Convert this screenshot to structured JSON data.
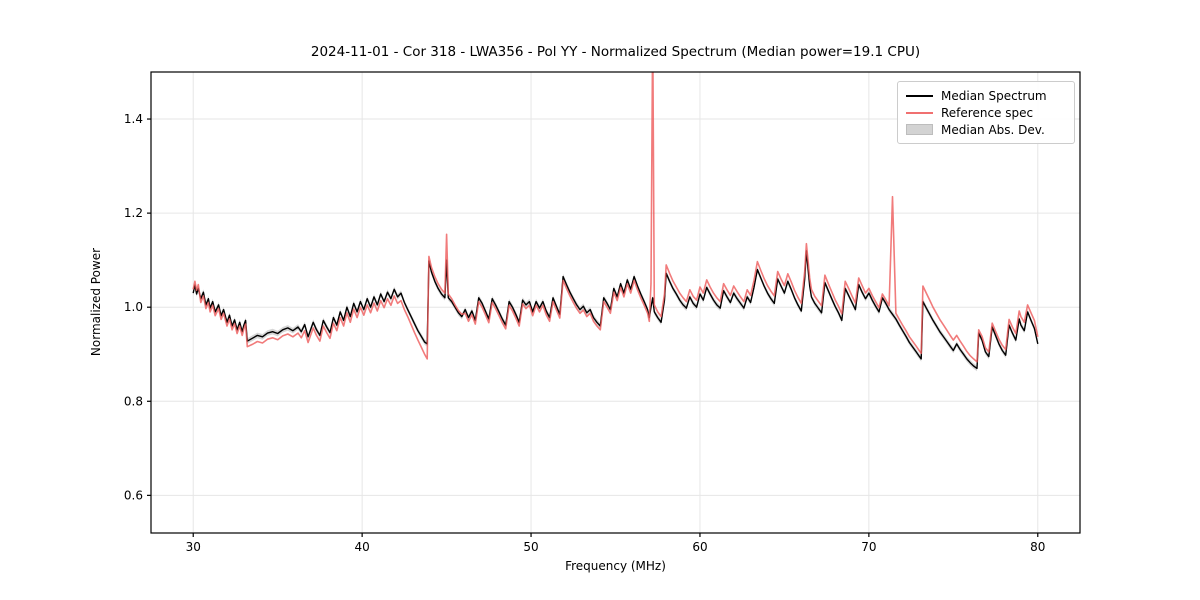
{
  "chart": {
    "title": "2024-11-01 - Cor 318 - LWA356 - Pol YY - Normalized Spectrum (Median power=19.1 CPU)",
    "xlabel": "Frequency (MHz)",
    "ylabel": "Normalized Power"
  },
  "legend": {
    "items": [
      {
        "label": "Median Spectrum",
        "type": "line",
        "color": "#000000"
      },
      {
        "label": "Reference spec",
        "type": "line",
        "color": "#f07070"
      },
      {
        "label": "Median Abs. Dev.",
        "type": "patch",
        "color": "#d3d3d3"
      }
    ]
  },
  "chart_data": {
    "type": "line",
    "title": "2024-11-01 - Cor 318 - LWA356 - Pol YY - Normalized Spectrum (Median power=19.1 CPU)",
    "xlabel": "Frequency (MHz)",
    "ylabel": "Normalized Power",
    "xlim": [
      27.5,
      82.5
    ],
    "ylim": [
      0.52,
      1.5
    ],
    "xticks": [
      30,
      40,
      50,
      60,
      70,
      80
    ],
    "yticks": [
      0.6,
      0.8,
      1.0,
      1.2,
      1.4
    ],
    "grid": true,
    "legend_position": "upper right",
    "colors": {
      "median": "#000000",
      "reference": "#ee5a5a",
      "mad_band": "#d2d2d2"
    },
    "mad_halfwidth": 0.006,
    "x": [
      30.0,
      30.1,
      30.2,
      30.3,
      30.45,
      30.6,
      30.75,
      30.9,
      31.0,
      31.15,
      31.3,
      31.5,
      31.65,
      31.8,
      32.0,
      32.15,
      32.3,
      32.45,
      32.6,
      32.75,
      32.9,
      33.0,
      33.1,
      33.2,
      33.5,
      33.8,
      34.1,
      34.4,
      34.7,
      35.0,
      35.3,
      35.6,
      35.9,
      36.2,
      36.4,
      36.6,
      36.8,
      37.1,
      37.3,
      37.5,
      37.7,
      37.9,
      38.1,
      38.3,
      38.5,
      38.7,
      38.9,
      39.1,
      39.3,
      39.5,
      39.7,
      39.9,
      40.1,
      40.3,
      40.5,
      40.7,
      40.9,
      41.1,
      41.3,
      41.5,
      41.7,
      41.9,
      42.1,
      42.3,
      42.5,
      42.7,
      42.9,
      43.1,
      43.3,
      43.5,
      43.7,
      43.85,
      43.95,
      44.1,
      44.3,
      44.5,
      44.7,
      44.9,
      45.0,
      45.1,
      45.3,
      45.5,
      45.7,
      45.9,
      46.1,
      46.3,
      46.5,
      46.7,
      46.9,
      47.1,
      47.3,
      47.5,
      47.7,
      47.9,
      48.1,
      48.3,
      48.5,
      48.7,
      48.9,
      49.1,
      49.3,
      49.5,
      49.7,
      49.9,
      50.1,
      50.3,
      50.5,
      50.7,
      50.9,
      51.1,
      51.3,
      51.5,
      51.7,
      51.9,
      52.1,
      52.3,
      52.5,
      52.7,
      52.9,
      53.1,
      53.3,
      53.5,
      53.7,
      53.9,
      54.1,
      54.3,
      54.5,
      54.7,
      54.9,
      55.1,
      55.3,
      55.5,
      55.7,
      55.9,
      56.1,
      56.3,
      56.5,
      56.7,
      56.9,
      57.0,
      57.1,
      57.2,
      57.3,
      57.5,
      57.7,
      57.9,
      58.0,
      58.2,
      58.4,
      58.6,
      58.8,
      59.0,
      59.2,
      59.4,
      59.6,
      59.8,
      60.0,
      60.2,
      60.4,
      60.6,
      60.8,
      61.0,
      61.2,
      61.4,
      61.6,
      61.8,
      62.0,
      62.2,
      62.4,
      62.6,
      62.8,
      63.0,
      63.2,
      63.4,
      63.6,
      63.8,
      64.0,
      64.2,
      64.4,
      64.6,
      64.8,
      65.0,
      65.2,
      65.4,
      65.6,
      65.8,
      66.0,
      66.2,
      66.3,
      66.4,
      66.5,
      66.6,
      66.8,
      67.0,
      67.2,
      67.4,
      67.6,
      67.8,
      68.0,
      68.2,
      68.4,
      68.6,
      68.8,
      69.0,
      69.2,
      69.4,
      69.6,
      69.8,
      70.0,
      70.2,
      70.4,
      70.6,
      70.8,
      71.0,
      71.2,
      71.4,
      71.6,
      71.8,
      72.0,
      72.2,
      72.4,
      72.6,
      72.8,
      73.0,
      73.1,
      73.2,
      73.4,
      73.6,
      73.8,
      74.0,
      74.2,
      74.4,
      74.6,
      74.8,
      75.0,
      75.2,
      75.4,
      75.6,
      75.8,
      76.0,
      76.2,
      76.4,
      76.5,
      76.7,
      76.9,
      77.1,
      77.3,
      77.5,
      77.7,
      77.9,
      78.1,
      78.3,
      78.5,
      78.7,
      78.9,
      79.0,
      79.2,
      79.4,
      79.6,
      79.8,
      80.0
    ],
    "series": [
      {
        "name": "Median Spectrum",
        "values": [
          1.03,
          1.047,
          1.028,
          1.04,
          1.018,
          1.032,
          1.005,
          1.018,
          0.998,
          1.012,
          0.99,
          1.005,
          0.982,
          0.995,
          0.968,
          0.983,
          0.96,
          0.973,
          0.952,
          0.968,
          0.948,
          0.962,
          0.972,
          0.928,
          0.934,
          0.94,
          0.937,
          0.945,
          0.948,
          0.944,
          0.952,
          0.956,
          0.95,
          0.958,
          0.948,
          0.963,
          0.937,
          0.968,
          0.952,
          0.94,
          0.972,
          0.958,
          0.946,
          0.978,
          0.962,
          0.99,
          0.972,
          1.0,
          0.98,
          1.008,
          0.99,
          1.012,
          0.995,
          1.018,
          1.0,
          1.022,
          1.005,
          1.028,
          1.012,
          1.032,
          1.018,
          1.038,
          1.022,
          1.03,
          1.01,
          0.995,
          0.98,
          0.965,
          0.95,
          0.938,
          0.926,
          0.922,
          1.098,
          1.075,
          1.055,
          1.04,
          1.028,
          1.02,
          1.1,
          1.02,
          1.012,
          1.0,
          0.988,
          0.98,
          0.995,
          0.978,
          0.992,
          0.972,
          1.02,
          1.008,
          0.992,
          0.975,
          1.018,
          1.005,
          0.99,
          0.975,
          0.962,
          1.012,
          1.0,
          0.985,
          0.968,
          1.015,
          1.005,
          1.012,
          0.99,
          1.012,
          0.998,
          1.012,
          0.992,
          0.978,
          1.02,
          1.002,
          0.985,
          1.065,
          1.048,
          1.032,
          1.018,
          1.005,
          0.995,
          1.002,
          0.988,
          0.995,
          0.978,
          0.968,
          0.96,
          1.02,
          1.008,
          0.995,
          1.04,
          1.022,
          1.05,
          1.03,
          1.058,
          1.038,
          1.065,
          1.045,
          1.028,
          1.012,
          0.995,
          0.978,
          1.0,
          1.02,
          0.99,
          0.978,
          0.968,
          1.015,
          1.072,
          1.055,
          1.04,
          1.028,
          1.015,
          1.005,
          0.998,
          1.022,
          1.008,
          1.0,
          1.028,
          1.015,
          1.042,
          1.028,
          1.015,
          1.005,
          0.998,
          1.035,
          1.022,
          1.01,
          1.03,
          1.018,
          1.008,
          0.998,
          1.022,
          1.01,
          1.042,
          1.08,
          1.062,
          1.045,
          1.03,
          1.018,
          1.008,
          1.06,
          1.045,
          1.03,
          1.055,
          1.038,
          1.02,
          1.005,
          0.992,
          1.06,
          1.12,
          1.08,
          1.045,
          1.022,
          1.008,
          0.998,
          0.988,
          1.052,
          1.035,
          1.018,
          1.002,
          0.988,
          0.972,
          1.04,
          1.025,
          1.01,
          0.995,
          1.048,
          1.032,
          1.018,
          1.03,
          1.015,
          1.002,
          0.99,
          1.02,
          1.008,
          0.995,
          0.985,
          0.975,
          0.962,
          0.95,
          0.938,
          0.925,
          0.915,
          0.905,
          0.895,
          0.89,
          1.012,
          0.998,
          0.985,
          0.972,
          0.96,
          0.948,
          0.938,
          0.928,
          0.918,
          0.908,
          0.922,
          0.91,
          0.9,
          0.89,
          0.882,
          0.875,
          0.87,
          0.945,
          0.93,
          0.905,
          0.895,
          0.958,
          0.94,
          0.922,
          0.908,
          0.898,
          0.962,
          0.945,
          0.93,
          0.975,
          0.962,
          0.95,
          0.99,
          0.972,
          0.955,
          0.922
        ]
      },
      {
        "name": "Reference spec",
        "values": [
          1.038,
          1.055,
          1.036,
          1.048,
          1.01,
          1.024,
          0.997,
          1.01,
          0.99,
          1.004,
          0.982,
          0.997,
          0.974,
          0.987,
          0.96,
          0.975,
          0.952,
          0.965,
          0.944,
          0.96,
          0.94,
          0.954,
          0.964,
          0.916,
          0.921,
          0.927,
          0.924,
          0.932,
          0.935,
          0.931,
          0.939,
          0.943,
          0.937,
          0.945,
          0.935,
          0.95,
          0.925,
          0.956,
          0.94,
          0.928,
          0.96,
          0.946,
          0.934,
          0.966,
          0.95,
          0.978,
          0.96,
          0.988,
          0.968,
          0.996,
          0.978,
          1.0,
          0.983,
          1.005,
          0.988,
          1.009,
          0.992,
          1.014,
          0.999,
          1.018,
          1.004,
          1.024,
          1.008,
          1.014,
          0.995,
          0.98,
          0.963,
          0.946,
          0.93,
          0.915,
          0.9,
          0.89,
          1.108,
          1.085,
          1.065,
          1.05,
          1.038,
          1.03,
          1.155,
          1.028,
          1.018,
          1.005,
          0.993,
          0.985,
          0.987,
          0.97,
          0.984,
          0.964,
          1.012,
          1.0,
          0.984,
          0.967,
          1.01,
          0.997,
          0.982,
          0.967,
          0.954,
          1.004,
          0.992,
          0.977,
          0.96,
          1.007,
          0.997,
          1.004,
          0.982,
          1.004,
          0.99,
          1.004,
          0.984,
          0.97,
          1.012,
          0.994,
          0.977,
          1.057,
          1.04,
          1.024,
          1.01,
          0.997,
          0.987,
          0.994,
          0.98,
          0.987,
          0.97,
          0.96,
          0.952,
          1.012,
          1.0,
          0.987,
          1.032,
          1.014,
          1.042,
          1.022,
          1.05,
          1.03,
          1.057,
          1.037,
          1.02,
          1.004,
          0.987,
          0.97,
          1.05,
          1.6,
          1.005,
          0.99,
          0.98,
          1.028,
          1.09,
          1.072,
          1.056,
          1.043,
          1.03,
          1.02,
          1.012,
          1.037,
          1.023,
          1.015,
          1.043,
          1.03,
          1.058,
          1.043,
          1.03,
          1.02,
          1.012,
          1.05,
          1.037,
          1.025,
          1.045,
          1.033,
          1.022,
          1.012,
          1.037,
          1.025,
          1.057,
          1.097,
          1.078,
          1.061,
          1.046,
          1.034,
          1.024,
          1.076,
          1.06,
          1.046,
          1.071,
          1.054,
          1.036,
          1.021,
          1.008,
          1.076,
          1.135,
          1.098,
          1.062,
          1.038,
          1.023,
          1.013,
          1.003,
          1.068,
          1.05,
          1.033,
          1.016,
          1.002,
          0.986,
          1.055,
          1.04,
          1.024,
          1.009,
          1.062,
          1.046,
          1.03,
          1.04,
          1.025,
          1.012,
          0.999,
          1.028,
          1.016,
          1.003,
          1.235,
          0.987,
          0.974,
          0.962,
          0.95,
          0.937,
          0.927,
          0.917,
          0.907,
          0.902,
          1.045,
          1.03,
          1.015,
          1.0,
          0.987,
          0.974,
          0.963,
          0.952,
          0.941,
          0.93,
          0.94,
          0.928,
          0.917,
          0.906,
          0.897,
          0.89,
          0.884,
          0.952,
          0.938,
          0.914,
          0.905,
          0.966,
          0.949,
          0.932,
          0.919,
          0.91,
          0.974,
          0.958,
          0.944,
          0.992,
          0.98,
          0.968,
          1.005,
          0.988,
          0.972,
          0.937
        ]
      }
    ]
  }
}
